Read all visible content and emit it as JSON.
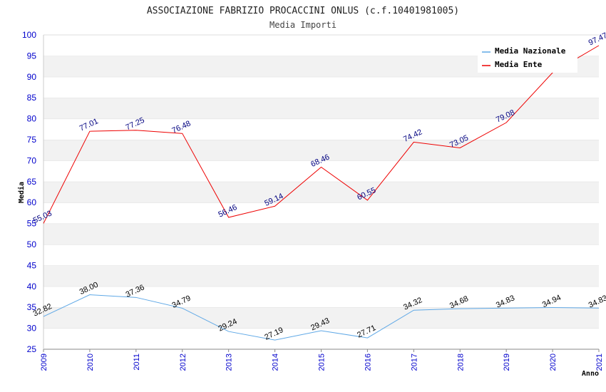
{
  "chart_data": {
    "type": "line",
    "title": "ASSOCIAZIONE FABRIZIO PROCACCINI ONLUS (c.f.10401981005)",
    "subtitle": "Media Importi",
    "xlabel": "Anno",
    "ylabel": "Media",
    "ylim": [
      25,
      100
    ],
    "yticks": [
      "25",
      "30",
      "35",
      "40",
      "45",
      "50",
      "55",
      "60",
      "65",
      "70",
      "75",
      "80",
      "85",
      "90",
      "95",
      "100"
    ],
    "categories": [
      "2009",
      "2010",
      "2011",
      "2012",
      "2013",
      "2014",
      "2015",
      "2016",
      "2017",
      "2018",
      "2019",
      "2020",
      "2021"
    ],
    "legend_position": "top-right",
    "grid": true,
    "series": [
      {
        "name": "Media Nazionale",
        "color": "#5fa8e6",
        "values": [
          32.82,
          38.0,
          37.36,
          34.79,
          29.24,
          27.19,
          29.43,
          27.71,
          34.32,
          34.68,
          34.83,
          34.94,
          34.83
        ],
        "labels": [
          "32.82",
          "38.00",
          "37.36",
          "34.79",
          "29.24",
          "27.19",
          "29.43",
          "27.71",
          "34.32",
          "34.68",
          "34.83",
          "34.94",
          "34.83"
        ]
      },
      {
        "name": "Media Ente",
        "color": "#ee0000",
        "values": [
          55.03,
          77.01,
          77.25,
          76.48,
          56.46,
          59.14,
          68.46,
          60.55,
          74.42,
          73.05,
          79.08,
          91.0,
          97.47
        ],
        "labels": [
          "55.03",
          "77.01",
          "77.25",
          "76.48",
          "56.46",
          "59.14",
          "68.46",
          "60.55",
          "74.42",
          "73.05",
          "79.08",
          "",
          "97.47"
        ]
      }
    ]
  }
}
